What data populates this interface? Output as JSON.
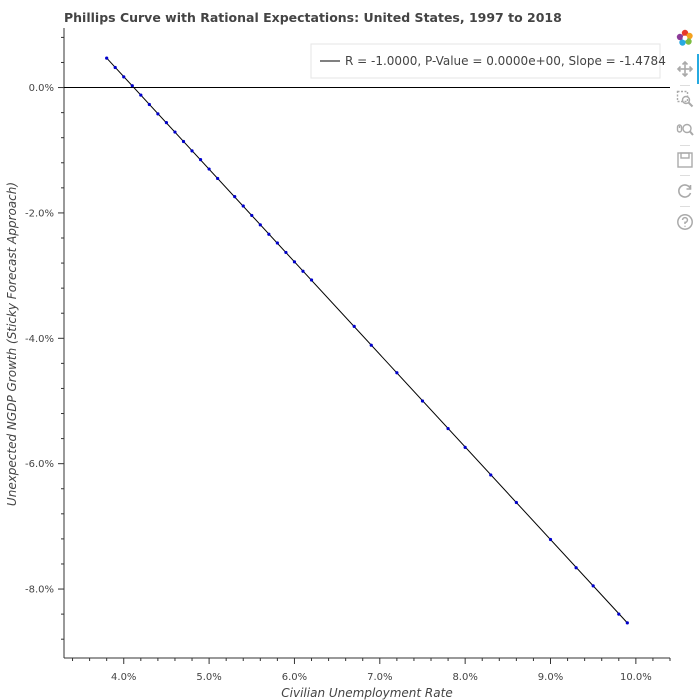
{
  "chart_data": {
    "type": "scatter",
    "title": "Phillips Curve with Rational Expectations: United States, 1997 to 2018",
    "xlabel": "Civilian Unemployment Rate",
    "ylabel": "Unexpected NGDP Growth (Sticky Forecast Approach)",
    "xlim": [
      3.3,
      10.4
    ],
    "ylim": [
      -9.1,
      0.95
    ],
    "x_ticks": [
      4.0,
      5.0,
      6.0,
      7.0,
      8.0,
      9.0,
      10.0
    ],
    "x_tick_labels": [
      "4.0%",
      "5.0%",
      "6.0%",
      "7.0%",
      "8.0%",
      "9.0%",
      "10.0%"
    ],
    "y_ticks": [
      0.0,
      -2.0,
      -4.0,
      -6.0,
      -8.0
    ],
    "y_tick_labels": [
      "0.0%",
      "-2.0%",
      "-4.0%",
      "-6.0%",
      "-8.0%"
    ],
    "hline": 0.0,
    "point_color": "#0000cc",
    "line_color": "#000000",
    "series": [
      {
        "values_x": [
          3.8,
          3.9,
          4.0,
          4.1,
          4.2,
          4.3,
          4.4,
          4.5,
          4.6,
          4.7,
          4.8,
          4.9,
          5.0,
          5.1,
          5.3,
          5.4,
          5.5,
          5.6,
          5.7,
          5.8,
          5.9,
          6.0,
          6.1,
          6.2,
          6.7,
          6.9,
          7.2,
          7.5,
          7.8,
          8.0,
          8.3,
          8.6,
          9.0,
          9.3,
          9.5,
          9.8,
          9.9
        ],
        "values_y": [
          0.47,
          0.32,
          0.17,
          0.03,
          -0.12,
          -0.27,
          -0.42,
          -0.56,
          -0.71,
          -0.86,
          -1.01,
          -1.15,
          -1.3,
          -1.45,
          -1.74,
          -1.89,
          -2.04,
          -2.19,
          -2.34,
          -2.48,
          -2.63,
          -2.78,
          -2.93,
          -3.07,
          -3.81,
          -4.11,
          -4.55,
          -5.0,
          -5.44,
          -5.74,
          -6.18,
          -6.62,
          -7.21,
          -7.66,
          -7.95,
          -8.4,
          -8.54
        ]
      }
    ],
    "fit_line": {
      "x": [
        3.8,
        9.9
      ],
      "y": [
        0.47,
        -8.54
      ]
    },
    "legend": {
      "position": "top-right",
      "entries": [
        "R = -1.0000, P-Value = 0.0000e+00, Slope = -1.4784"
      ]
    },
    "grid": false
  },
  "toolbar": {
    "items": [
      {
        "name": "bokeh-logo-icon"
      },
      {
        "name": "pan-icon"
      },
      {
        "name": "box-zoom-icon"
      },
      {
        "name": "wheel-zoom-icon"
      },
      {
        "name": "save-icon"
      },
      {
        "name": "reset-icon"
      },
      {
        "name": "help-icon"
      }
    ]
  }
}
